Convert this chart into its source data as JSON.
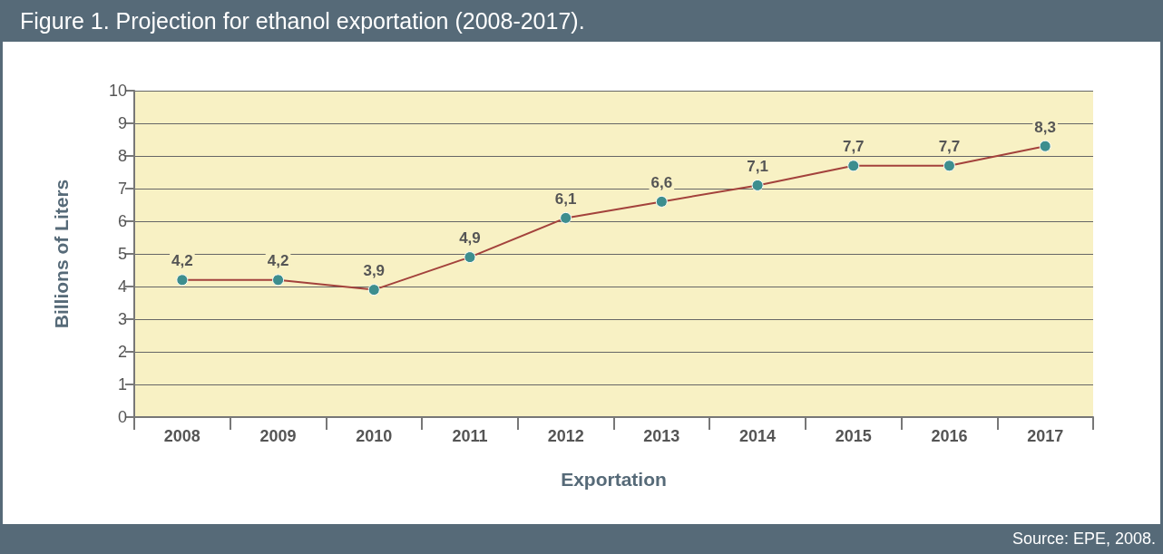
{
  "chart_data": {
    "type": "line",
    "title": "Figure 1. Projection for ethanol exportation (2008-2017).",
    "xlabel": "Exportation",
    "ylabel": "Billions of Liters",
    "annotations": [
      "Source: EPE, 2008."
    ],
    "categories": [
      "2008",
      "2009",
      "2010",
      "2011",
      "2012",
      "2013",
      "2014",
      "2015",
      "2016",
      "2017"
    ],
    "series": [
      {
        "color": "#a3423c",
        "values": [
          4.2,
          4.2,
          3.9,
          4.9,
          6.1,
          6.6,
          7.1,
          7.7,
          7.7,
          8.3
        ],
        "value_labels": [
          "4,2",
          "4,2",
          "3,9",
          "4,9",
          "6,1",
          "6,6",
          "7,1",
          "7,7",
          "7,7",
          "8,3"
        ]
      }
    ],
    "ylim": [
      0,
      10
    ],
    "yticks": [
      0,
      1,
      2,
      3,
      4,
      5,
      6,
      7,
      8,
      9,
      10
    ],
    "grid": "y",
    "marker": "circle",
    "line_style": "solid"
  }
}
